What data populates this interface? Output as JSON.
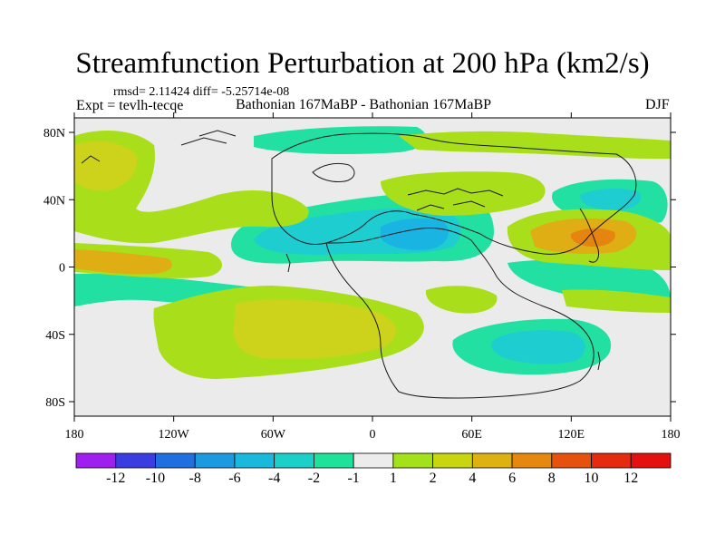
{
  "title": "Streamfunction Perturbation at 200 hPa (km2/s)",
  "stats": "rmsd= 2.11424 diff= -5.25714e-08",
  "experiment": "Expt = tevlh-tecqe",
  "comparison": "Bathonian 167MaBP - Bathonian 167MaBP",
  "season": "DJF",
  "lat_ticks": [
    "80N",
    "40N",
    "0",
    "40S",
    "80S"
  ],
  "lon_ticks": [
    "180",
    "120W",
    "60W",
    "0",
    "60E",
    "120E",
    "180"
  ],
  "colorbar": {
    "colors": [
      "#9f1fef",
      "#3a3ee0",
      "#1f6fe0",
      "#1b9ae0",
      "#19b9dd",
      "#1ad0c8",
      "#1fe29a",
      "#ececec",
      "#a3e21a",
      "#c9d60f",
      "#ddb110",
      "#e6870e",
      "#e6520e",
      "#e42b0e",
      "#e40f0f"
    ],
    "labels": [
      "-12",
      "-10",
      "-8",
      "-6",
      "-4",
      "-2",
      "-1",
      "1",
      "2",
      "4",
      "6",
      "8",
      "10",
      "12"
    ]
  },
  "field_colors": {
    "background": "#ebebeb",
    "pos_weak": "#a8df1a",
    "pos_mid": "#ccd31a",
    "pos_strong": "#dfae14",
    "pos_peak": "#e5850f",
    "neg_weak": "#22e0a2",
    "neg_mid": "#1ecdd0",
    "neg_strong": "#1ab4e2",
    "coast": "#1a1a1a"
  }
}
